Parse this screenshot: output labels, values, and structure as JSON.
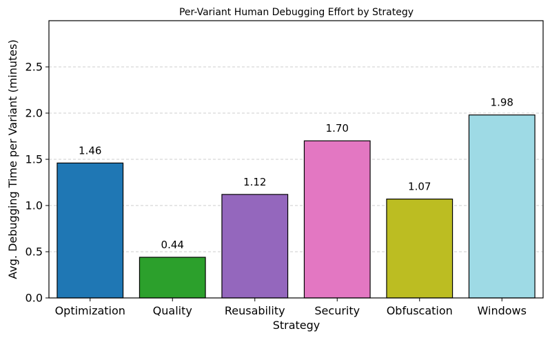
{
  "chart_data": {
    "type": "bar",
    "title": "Per-Variant Human Debugging Effort by Strategy",
    "xlabel": "Strategy",
    "ylabel": "Avg. Debugging Time per Variant (minutes)",
    "categories": [
      "Optimization",
      "Quality",
      "Reusability",
      "Security",
      "Obfuscation",
      "Windows"
    ],
    "values": [
      1.46,
      0.44,
      1.12,
      1.7,
      1.07,
      1.98
    ],
    "data_labels": [
      "1.46",
      "0.44",
      "1.12",
      "1.70",
      "1.07",
      "1.98"
    ],
    "colors": [
      "#1f77b4",
      "#2ca02c",
      "#9467bd",
      "#e377c2",
      "#bcbd22",
      "#9edae5"
    ],
    "ylim": [
      0,
      3.0
    ],
    "yticks": [
      0.0,
      0.5,
      1.0,
      1.5,
      2.0,
      2.5
    ],
    "ytick_labels": [
      "0.0",
      "0.5",
      "1.0",
      "1.5",
      "2.0",
      "2.5"
    ],
    "grid": "y-dashed",
    "legend": "none"
  }
}
